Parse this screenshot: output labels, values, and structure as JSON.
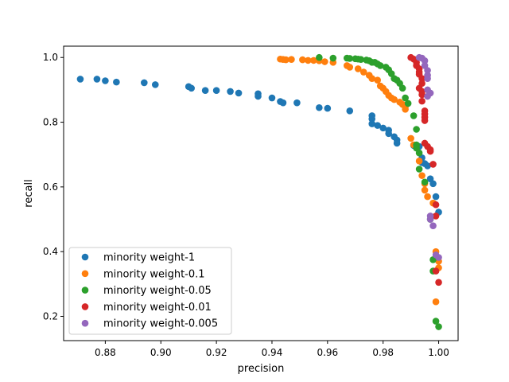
{
  "chart_data": {
    "type": "scatter",
    "xlabel": "precision",
    "ylabel": "recall",
    "xlim": [
      0.865,
      1.007
    ],
    "ylim": [
      0.125,
      1.035
    ],
    "x_ticks": [
      0.88,
      0.9,
      0.92,
      0.94,
      0.96,
      0.98,
      1.0
    ],
    "x_tick_labels": [
      "0.88",
      "0.90",
      "0.92",
      "0.94",
      "0.96",
      "0.98",
      "1.00"
    ],
    "y_ticks": [
      0.2,
      0.4,
      0.6,
      0.8,
      1.0
    ],
    "y_tick_labels": [
      "0.2",
      "0.4",
      "0.6",
      "0.8",
      "1.0"
    ],
    "grid": false,
    "legend_position": "lower-left",
    "series": [
      {
        "name": "minority weight-1",
        "color": "#1f77b4",
        "points": [
          [
            0.871,
            0.933
          ],
          [
            0.877,
            0.933
          ],
          [
            0.88,
            0.928
          ],
          [
            0.884,
            0.924
          ],
          [
            0.894,
            0.922
          ],
          [
            0.898,
            0.916
          ],
          [
            0.91,
            0.91
          ],
          [
            0.911,
            0.905
          ],
          [
            0.916,
            0.898
          ],
          [
            0.92,
            0.898
          ],
          [
            0.925,
            0.895
          ],
          [
            0.928,
            0.89
          ],
          [
            0.935,
            0.888
          ],
          [
            0.935,
            0.88
          ],
          [
            0.94,
            0.875
          ],
          [
            0.943,
            0.864
          ],
          [
            0.944,
            0.86
          ],
          [
            0.949,
            0.86
          ],
          [
            0.957,
            0.845
          ],
          [
            0.96,
            0.843
          ],
          [
            0.968,
            0.835
          ],
          [
            0.976,
            0.82
          ],
          [
            0.976,
            0.81
          ],
          [
            0.976,
            0.795
          ],
          [
            0.978,
            0.79
          ],
          [
            0.98,
            0.782
          ],
          [
            0.982,
            0.775
          ],
          [
            0.982,
            0.765
          ],
          [
            0.984,
            0.755
          ],
          [
            0.985,
            0.745
          ],
          [
            0.985,
            0.735
          ],
          [
            0.991,
            0.728
          ],
          [
            0.993,
            0.725
          ],
          [
            0.994,
            0.69
          ],
          [
            0.994,
            0.675
          ],
          [
            0.995,
            0.672
          ],
          [
            0.996,
            0.665
          ],
          [
            0.997,
            0.625
          ],
          [
            0.998,
            0.61
          ],
          [
            0.999,
            0.57
          ],
          [
            1.0,
            0.522
          ]
        ]
      },
      {
        "name": "minority weight-0.1",
        "color": "#ff7f0e",
        "points": [
          [
            0.943,
            0.995
          ],
          [
            0.944,
            0.994
          ],
          [
            0.945,
            0.993
          ],
          [
            0.947,
            0.994
          ],
          [
            0.951,
            0.993
          ],
          [
            0.953,
            0.991
          ],
          [
            0.955,
            0.991
          ],
          [
            0.957,
            0.99
          ],
          [
            0.959,
            0.987
          ],
          [
            0.962,
            0.985
          ],
          [
            0.967,
            0.975
          ],
          [
            0.968,
            0.97
          ],
          [
            0.971,
            0.965
          ],
          [
            0.973,
            0.955
          ],
          [
            0.975,
            0.945
          ],
          [
            0.976,
            0.935
          ],
          [
            0.978,
            0.93
          ],
          [
            0.979,
            0.912
          ],
          [
            0.98,
            0.905
          ],
          [
            0.981,
            0.895
          ],
          [
            0.982,
            0.883
          ],
          [
            0.983,
            0.875
          ],
          [
            0.984,
            0.87
          ],
          [
            0.986,
            0.862
          ],
          [
            0.987,
            0.855
          ],
          [
            0.988,
            0.848
          ],
          [
            0.988,
            0.84
          ],
          [
            0.99,
            0.75
          ],
          [
            0.991,
            0.73
          ],
          [
            0.993,
            0.68
          ],
          [
            0.994,
            0.635
          ],
          [
            0.995,
            0.61
          ],
          [
            0.995,
            0.59
          ],
          [
            0.996,
            0.57
          ],
          [
            0.998,
            0.55
          ],
          [
            0.999,
            0.4
          ],
          [
            1.0,
            0.37
          ],
          [
            1.0,
            0.35
          ],
          [
            0.999,
            0.245
          ]
        ]
      },
      {
        "name": "minority weight-0.05",
        "color": "#2ca02c",
        "points": [
          [
            0.957,
            1.0
          ],
          [
            0.962,
            0.998
          ],
          [
            0.967,
            0.998
          ],
          [
            0.968,
            0.997
          ],
          [
            0.97,
            0.996
          ],
          [
            0.971,
            0.995
          ],
          [
            0.972,
            0.994
          ],
          [
            0.974,
            0.992
          ],
          [
            0.975,
            0.99
          ],
          [
            0.976,
            0.985
          ],
          [
            0.977,
            0.985
          ],
          [
            0.978,
            0.98
          ],
          [
            0.979,
            0.975
          ],
          [
            0.981,
            0.97
          ],
          [
            0.982,
            0.962
          ],
          [
            0.983,
            0.95
          ],
          [
            0.984,
            0.935
          ],
          [
            0.985,
            0.93
          ],
          [
            0.986,
            0.92
          ],
          [
            0.987,
            0.905
          ],
          [
            0.988,
            0.875
          ],
          [
            0.989,
            0.858
          ],
          [
            0.991,
            0.82
          ],
          [
            0.992,
            0.778
          ],
          [
            0.992,
            0.73
          ],
          [
            0.992,
            0.72
          ],
          [
            0.993,
            0.705
          ],
          [
            0.993,
            0.655
          ],
          [
            0.995,
            0.615
          ],
          [
            0.997,
            0.5
          ],
          [
            0.998,
            0.375
          ],
          [
            0.998,
            0.34
          ],
          [
            0.999,
            0.185
          ],
          [
            1.0,
            0.168
          ]
        ]
      },
      {
        "name": "minority weight-0.01",
        "color": "#d62728",
        "points": [
          [
            0.99,
            1.0
          ],
          [
            0.991,
            0.995
          ],
          [
            0.992,
            0.985
          ],
          [
            0.992,
            0.975
          ],
          [
            0.993,
            0.965
          ],
          [
            0.993,
            0.955
          ],
          [
            0.993,
            0.948
          ],
          [
            0.994,
            0.935
          ],
          [
            0.994,
            0.92
          ],
          [
            0.993,
            0.905
          ],
          [
            0.994,
            0.895
          ],
          [
            0.994,
            0.885
          ],
          [
            0.994,
            0.865
          ],
          [
            0.995,
            0.835
          ],
          [
            0.995,
            0.825
          ],
          [
            0.995,
            0.815
          ],
          [
            0.995,
            0.805
          ],
          [
            0.995,
            0.735
          ],
          [
            0.996,
            0.725
          ],
          [
            0.997,
            0.715
          ],
          [
            0.997,
            0.71
          ],
          [
            0.998,
            0.67
          ],
          [
            0.999,
            0.545
          ],
          [
            0.999,
            0.51
          ],
          [
            0.999,
            0.34
          ],
          [
            1.0,
            0.305
          ]
        ]
      },
      {
        "name": "minority weight-0.005",
        "color": "#9467bd",
        "points": [
          [
            0.993,
            1.0
          ],
          [
            0.994,
            0.998
          ],
          [
            0.995,
            0.99
          ],
          [
            0.995,
            0.975
          ],
          [
            0.996,
            0.96
          ],
          [
            0.996,
            0.945
          ],
          [
            0.996,
            0.935
          ],
          [
            0.996,
            0.9
          ],
          [
            0.997,
            0.89
          ],
          [
            0.996,
            0.88
          ],
          [
            0.997,
            0.51
          ],
          [
            0.997,
            0.5
          ],
          [
            0.998,
            0.48
          ],
          [
            0.999,
            0.39
          ],
          [
            1.0,
            0.382
          ]
        ]
      }
    ]
  }
}
